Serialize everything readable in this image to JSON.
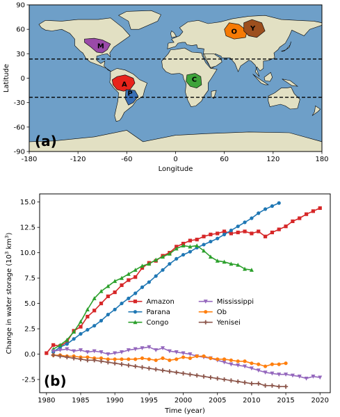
{
  "panel_a": {
    "label": "(a)",
    "xlabel": "Longitude",
    "ylabel": "Latitude",
    "xticks": [
      -180,
      -120,
      -60,
      0,
      60,
      120,
      180
    ],
    "yticks": [
      -90,
      -60,
      -30,
      0,
      30,
      60,
      90
    ],
    "tropic_lines": [
      23.5,
      -23.5
    ],
    "ocean_color": "#6e9fc8",
    "land_color": "#e2e0c3",
    "basins": [
      {
        "letter": "M",
        "name": "Mississippi",
        "color": "#9a4aa8",
        "lon": -92,
        "lat": 40
      },
      {
        "letter": "A",
        "name": "Amazon",
        "color": "#e8241b",
        "lon": -63,
        "lat": -7
      },
      {
        "letter": "P",
        "name": "Parana",
        "color": "#3a6fb5",
        "lon": -56,
        "lat": -18
      },
      {
        "letter": "C",
        "name": "Congo",
        "color": "#3fa33a",
        "lon": 23,
        "lat": -1
      },
      {
        "letter": "O",
        "name": "Ob",
        "color": "#f57a05",
        "lon": 72,
        "lat": 58
      },
      {
        "letter": "Y",
        "name": "Yenisei",
        "color": "#9c4f1e",
        "lon": 95,
        "lat": 62
      }
    ]
  },
  "chart_data": {
    "type": "line",
    "label": "(b)",
    "title": "",
    "xlabel": "Time (year)",
    "ylabel": "Change in water storage (10",
    "ylabel_sup": "3",
    "ylabel_tail": " km",
    "ylabel_sup2": "3",
    "ylabel_end": ")",
    "xlim": [
      1979,
      2021.5
    ],
    "ylim": [
      -3.8,
      15.8
    ],
    "xticks": [
      1980,
      1985,
      1990,
      1995,
      2000,
      2005,
      2010,
      2015,
      2020
    ],
    "yticks": [
      -2.5,
      0.0,
      2.5,
      5.0,
      7.5,
      10.0,
      12.5,
      15.0
    ],
    "ytick_labels": [
      "-2.5",
      "0.0",
      "2.5",
      "5.0",
      "7.5",
      "10.0",
      "12.5",
      "15.0"
    ],
    "legend_position": "center-right",
    "series": [
      {
        "name": "Amazon",
        "color": "#d62728",
        "marker": "square",
        "x": [
          1980,
          1981,
          1982,
          1983,
          1984,
          1985,
          1986,
          1987,
          1988,
          1989,
          1990,
          1991,
          1992,
          1993,
          1994,
          1995,
          1996,
          1997,
          1998,
          1999,
          2000,
          2001,
          2002,
          2003,
          2004,
          2005,
          2006,
          2007,
          2008,
          2009,
          2010,
          2011,
          2012,
          2013,
          2014,
          2015,
          2016,
          2017,
          2018,
          2019,
          2020
        ],
        "y": [
          0.1,
          0.9,
          0.8,
          1.2,
          2.3,
          2.7,
          3.7,
          4.3,
          5.0,
          5.7,
          6.1,
          6.8,
          7.3,
          7.6,
          8.5,
          9.0,
          9.2,
          9.7,
          10.0,
          10.6,
          10.9,
          11.2,
          11.3,
          11.6,
          11.8,
          11.9,
          12.1,
          11.9,
          12.0,
          12.1,
          11.9,
          12.1,
          11.6,
          12.0,
          12.3,
          12.6,
          13.1,
          13.4,
          13.8,
          14.1,
          14.4
        ]
      },
      {
        "name": "Parana",
        "color": "#1f77b4",
        "marker": "circle",
        "x": [
          1981,
          1982,
          1983,
          1984,
          1985,
          1986,
          1987,
          1988,
          1989,
          1990,
          1991,
          1992,
          1993,
          1994,
          1995,
          1996,
          1997,
          1998,
          1999,
          2000,
          2001,
          2002,
          2003,
          2004,
          2005,
          2006,
          2007,
          2008,
          2009,
          2010,
          2011,
          2012,
          2013,
          2014
        ],
        "y": [
          0.2,
          0.7,
          1.0,
          1.5,
          2.0,
          2.4,
          2.8,
          3.3,
          3.9,
          4.4,
          5.0,
          5.5,
          6.0,
          6.6,
          7.1,
          7.7,
          8.3,
          8.9,
          9.4,
          9.8,
          10.1,
          10.5,
          10.8,
          11.1,
          11.4,
          11.8,
          12.2,
          12.6,
          13.0,
          13.4,
          13.9,
          14.3,
          14.6,
          14.9
        ]
      },
      {
        "name": "Congo",
        "color": "#2ca02c",
        "marker": "triangle",
        "x": [
          1981,
          1982,
          1983,
          1984,
          1985,
          1986,
          1987,
          1988,
          1989,
          1990,
          1991,
          1992,
          1993,
          1994,
          1995,
          1996,
          1997,
          1998,
          1999,
          2000,
          2001,
          2002,
          2003,
          2004,
          2005,
          2006,
          2007,
          2008,
          2009,
          2010
        ],
        "y": [
          0.5,
          0.9,
          1.4,
          2.2,
          3.2,
          4.4,
          5.5,
          6.2,
          6.7,
          7.2,
          7.5,
          7.9,
          8.3,
          8.7,
          8.9,
          9.3,
          9.6,
          9.9,
          10.4,
          10.7,
          10.6,
          10.7,
          10.2,
          9.6,
          9.2,
          9.1,
          8.9,
          8.8,
          8.4,
          8.3
        ]
      },
      {
        "name": "Mississippi",
        "color": "#9467bd",
        "marker": "triangle-down",
        "x": [
          1981,
          1982,
          1983,
          1984,
          1985,
          1986,
          1987,
          1988,
          1989,
          1990,
          1991,
          1992,
          1993,
          1994,
          1995,
          1996,
          1997,
          1998,
          1999,
          2000,
          2001,
          2002,
          2003,
          2004,
          2005,
          2006,
          2007,
          2008,
          2009,
          2010,
          2011,
          2012,
          2013,
          2014,
          2015,
          2016,
          2017,
          2018,
          2019,
          2020
        ],
        "y": [
          0.3,
          0.4,
          0.5,
          0.3,
          0.4,
          0.2,
          0.3,
          0.2,
          0.0,
          0.1,
          0.2,
          0.4,
          0.5,
          0.6,
          0.7,
          0.4,
          0.6,
          0.3,
          0.2,
          0.1,
          0.0,
          -0.2,
          -0.3,
          -0.4,
          -0.6,
          -0.8,
          -1.0,
          -1.1,
          -1.2,
          -1.4,
          -1.6,
          -1.8,
          -1.9,
          -2.0,
          -2.0,
          -2.1,
          -2.2,
          -2.4,
          -2.2,
          -2.3
        ]
      },
      {
        "name": "Ob",
        "color": "#ff7f0e",
        "marker": "circle",
        "x": [
          1981,
          1982,
          1983,
          1984,
          1985,
          1986,
          1987,
          1988,
          1989,
          1990,
          1991,
          1992,
          1993,
          1994,
          1995,
          1996,
          1997,
          1998,
          1999,
          2000,
          2001,
          2002,
          2003,
          2004,
          2005,
          2006,
          2007,
          2008,
          2009,
          2010,
          2011,
          2012,
          2013,
          2014,
          2015
        ],
        "y": [
          -0.1,
          -0.1,
          -0.2,
          -0.2,
          -0.3,
          -0.3,
          -0.4,
          -0.4,
          -0.5,
          -0.5,
          -0.5,
          -0.5,
          -0.5,
          -0.4,
          -0.5,
          -0.6,
          -0.4,
          -0.6,
          -0.5,
          -0.3,
          -0.4,
          -0.2,
          -0.2,
          -0.4,
          -0.5,
          -0.5,
          -0.6,
          -0.7,
          -0.7,
          -0.9,
          -1.0,
          -1.2,
          -1.0,
          -1.0,
          -0.9
        ]
      },
      {
        "name": "Yenisei",
        "color": "#8c564b",
        "marker": "plus",
        "x": [
          1981,
          1982,
          1983,
          1984,
          1985,
          1986,
          1987,
          1988,
          1989,
          1990,
          1991,
          1992,
          1993,
          1994,
          1995,
          1996,
          1997,
          1998,
          1999,
          2000,
          2001,
          2002,
          2003,
          2004,
          2005,
          2006,
          2007,
          2008,
          2009,
          2010,
          2011,
          2012,
          2013,
          2014,
          2015
        ],
        "y": [
          -0.1,
          -0.2,
          -0.3,
          -0.4,
          -0.5,
          -0.6,
          -0.6,
          -0.7,
          -0.8,
          -0.9,
          -1.0,
          -1.1,
          -1.2,
          -1.3,
          -1.4,
          -1.5,
          -1.6,
          -1.7,
          -1.8,
          -1.9,
          -2.0,
          -2.1,
          -2.2,
          -2.3,
          -2.4,
          -2.5,
          -2.6,
          -2.7,
          -2.8,
          -2.9,
          -2.9,
          -3.1,
          -3.1,
          -3.2,
          -3.2
        ]
      }
    ]
  }
}
